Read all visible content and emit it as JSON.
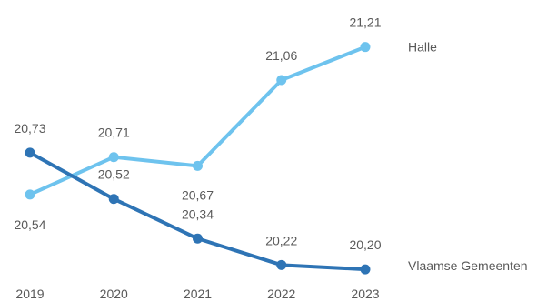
{
  "chart_data": {
    "type": "line",
    "x": [
      "2019",
      "2020",
      "2021",
      "2022",
      "2023"
    ],
    "series": [
      {
        "name": "Halle",
        "values": [
          20.54,
          20.71,
          20.67,
          21.06,
          21.21
        ],
        "labels": [
          "20,54",
          "20,71",
          "20,67",
          "21,06",
          "21,21"
        ],
        "color": "#6EC3EE"
      },
      {
        "name": "Vlaamse Gemeenten",
        "values": [
          20.73,
          20.52,
          20.34,
          20.22,
          20.2
        ],
        "labels": [
          "20,73",
          "20,52",
          "20,34",
          "20,22",
          "20,20"
        ],
        "color": "#2E74B5"
      }
    ],
    "ylim": [
      20.18,
      21.25
    ],
    "grid": false,
    "legend": "right, inline at line ends"
  }
}
